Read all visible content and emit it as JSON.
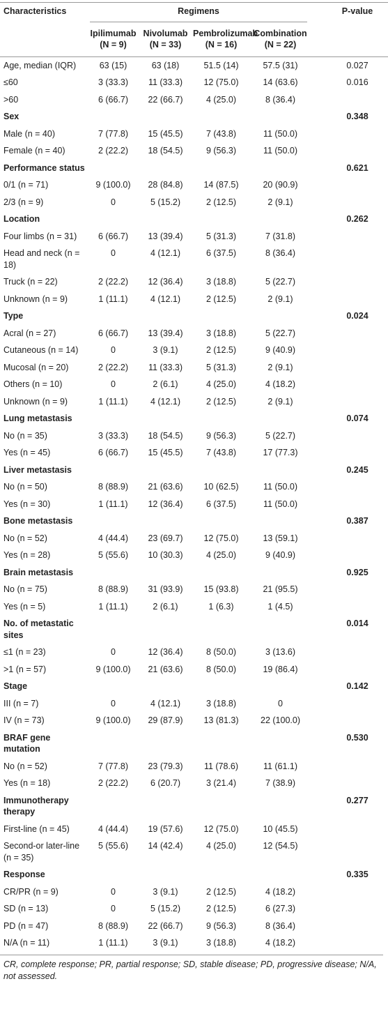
{
  "header": {
    "characteristics": "Characteristics",
    "regimens": "Regimens",
    "p_value": "P-value",
    "columns": [
      {
        "name": "Ipilimumab",
        "n": "(N = 9)"
      },
      {
        "name": "Nivolumab",
        "n": "(N = 33)"
      },
      {
        "name": "Pembrolizumab",
        "n": "(N = 16)"
      },
      {
        "name": "Combination",
        "n": "(N = 22)"
      }
    ]
  },
  "table": {
    "rows": [
      {
        "label": "Age, median (IQR)",
        "values": [
          "63 (15)",
          "63 (18)",
          "51.5 (14)",
          "57.5 (31)"
        ],
        "p": "0.027"
      },
      {
        "label": "≤60",
        "values": [
          "3 (33.3)",
          "11 (33.3)",
          "12 (75.0)",
          "14 (63.6)"
        ],
        "p": "0.016"
      },
      {
        "label": ">60",
        "values": [
          "6 (66.7)",
          "22 (66.7)",
          "4 (25.0)",
          "8 (36.4)"
        ]
      },
      {
        "label": "Sex",
        "p": "0.348"
      },
      {
        "label": "Male (n = 40)",
        "values": [
          "7 (77.8)",
          "15 (45.5)",
          "7 (43.8)",
          "11 (50.0)"
        ]
      },
      {
        "label": "Female (n = 40)",
        "values": [
          "2 (22.2)",
          "18 (54.5)",
          "9 (56.3)",
          "11 (50.0)"
        ]
      },
      {
        "label": "Performance status",
        "p": "0.621"
      },
      {
        "label": "0/1 (n = 71)",
        "values": [
          "9 (100.0)",
          "28 (84.8)",
          "14 (87.5)",
          "20 (90.9)"
        ]
      },
      {
        "label": "2/3 (n = 9)",
        "values": [
          "0",
          "5 (15.2)",
          "2 (12.5)",
          "2 (9.1)"
        ]
      },
      {
        "label": "Location",
        "p": "0.262"
      },
      {
        "label": "Four limbs (n = 31)",
        "values": [
          "6 (66.7)",
          "13 (39.4)",
          "5 (31.3)",
          "7 (31.8)"
        ]
      },
      {
        "label": "Head and neck (n = 18)",
        "values": [
          "0",
          "4 (12.1)",
          "6 (37.5)",
          "8 (36.4)"
        ]
      },
      {
        "label": "Truck (n = 22)",
        "values": [
          "2 (22.2)",
          "12 (36.4)",
          "3 (18.8)",
          "5 (22.7)"
        ]
      },
      {
        "label": "Unknown (n = 9)",
        "values": [
          "1 (11.1)",
          "4 (12.1)",
          "2 (12.5)",
          "2 (9.1)"
        ]
      },
      {
        "label": "Type",
        "p": "0.024"
      },
      {
        "label": "Acral (n = 27)",
        "values": [
          "6 (66.7)",
          "13 (39.4)",
          "3 (18.8)",
          "5 (22.7)"
        ]
      },
      {
        "label": "Cutaneous (n = 14)",
        "values": [
          "0",
          "3 (9.1)",
          "2 (12.5)",
          "9 (40.9)"
        ]
      },
      {
        "label": "Mucosal (n = 20)",
        "values": [
          "2 (22.2)",
          "11 (33.3)",
          "5 (31.3)",
          "2 (9.1)"
        ]
      },
      {
        "label": "Others (n = 10)",
        "values": [
          "0",
          "2 (6.1)",
          "4 (25.0)",
          "4 (18.2)"
        ]
      },
      {
        "label": "Unknown (n = 9)",
        "values": [
          "1 (11.1)",
          "4 (12.1)",
          "2 (12.5)",
          "2 (9.1)"
        ]
      },
      {
        "label": "Lung metastasis",
        "p": "0.074"
      },
      {
        "label": "No (n = 35)",
        "values": [
          "3 (33.3)",
          "18 (54.5)",
          "9 (56.3)",
          "5 (22.7)"
        ]
      },
      {
        "label": "Yes (n = 45)",
        "values": [
          "6 (66.7)",
          "15 (45.5)",
          "7 (43.8)",
          "17 (77.3)"
        ]
      },
      {
        "label": "Liver metastasis",
        "p": "0.245"
      },
      {
        "label": "No (n = 50)",
        "values": [
          "8 (88.9)",
          "21 (63.6)",
          "10 (62.5)",
          "11 (50.0)"
        ]
      },
      {
        "label": "Yes (n = 30)",
        "values": [
          "1 (11.1)",
          "12 (36.4)",
          "6 (37.5)",
          "11 (50.0)"
        ]
      },
      {
        "label": "Bone metastasis",
        "p": "0.387"
      },
      {
        "label": "No (n = 52)",
        "values": [
          "4 (44.4)",
          "23 (69.7)",
          "12 (75.0)",
          "13 (59.1)"
        ]
      },
      {
        "label": "Yes (n = 28)",
        "values": [
          "5 (55.6)",
          "10 (30.3)",
          "4 (25.0)",
          "9 (40.9)"
        ]
      },
      {
        "label": "Brain metastasis",
        "p": "0.925"
      },
      {
        "label": "No (n = 75)",
        "values": [
          "8 (88.9)",
          "31 (93.9)",
          "15 (93.8)",
          "21 (95.5)"
        ]
      },
      {
        "label": "Yes (n = 5)",
        "values": [
          "1 (11.1)",
          "2 (6.1)",
          "1 (6.3)",
          "1 (4.5)"
        ]
      },
      {
        "label": "No. of metastatic sites",
        "p": "0.014"
      },
      {
        "label": "≤1 (n = 23)",
        "values": [
          "0",
          "12 (36.4)",
          "8 (50.0)",
          "3 (13.6)"
        ]
      },
      {
        "label": ">1 (n = 57)",
        "values": [
          "9 (100.0)",
          "21 (63.6)",
          "8 (50.0)",
          "19 (86.4)"
        ]
      },
      {
        "label": "Stage",
        "p": "0.142"
      },
      {
        "label": "III (n = 7)",
        "values": [
          "0",
          "4 (12.1)",
          "3 (18.8)",
          "0"
        ]
      },
      {
        "label": "IV (n = 73)",
        "values": [
          "9 (100.0)",
          "29 (87.9)",
          "13 (81.3)",
          "22 (100.0)"
        ]
      },
      {
        "label": "BRAF gene mutation",
        "p": "0.530"
      },
      {
        "label": "No (n = 52)",
        "values": [
          "7 (77.8)",
          "23 (79.3)",
          "11 (78.6)",
          "11 (61.1)"
        ]
      },
      {
        "label": "Yes (n = 18)",
        "values": [
          "2 (22.2)",
          "6 (20.7)",
          "3 (21.4)",
          "7 (38.9)"
        ]
      },
      {
        "label": "Immunotherapy therapy",
        "p": "0.277"
      },
      {
        "label": "First-line (n = 45)",
        "values": [
          "4 (44.4)",
          "19 (57.6)",
          "12 (75.0)",
          "10 (45.5)"
        ]
      },
      {
        "label": "Second-or later-line (n = 35)",
        "values": [
          "5 (55.6)",
          "14 (42.4)",
          "4 (25.0)",
          "12 (54.5)"
        ]
      },
      {
        "label": "Response",
        "p": "0.335"
      },
      {
        "label": "CR/PR (n = 9)",
        "values": [
          "0",
          "3 (9.1)",
          "2 (12.5)",
          "4 (18.2)"
        ]
      },
      {
        "label": "SD (n = 13)",
        "values": [
          "0",
          "5 (15.2)",
          "2 (12.5)",
          "6 (27.3)"
        ]
      },
      {
        "label": "PD (n = 47)",
        "values": [
          "8 (88.9)",
          "22 (66.7)",
          "9 (56.3)",
          "8 (36.4)"
        ]
      },
      {
        "label": "N/A (n = 11)",
        "values": [
          "1 (11.1)",
          "3 (9.1)",
          "3 (18.8)",
          "4 (18.2)"
        ]
      }
    ]
  },
  "footnote": "CR, complete response; PR, partial response; SD, stable disease; PD, progressive disease; N/A, not assessed."
}
